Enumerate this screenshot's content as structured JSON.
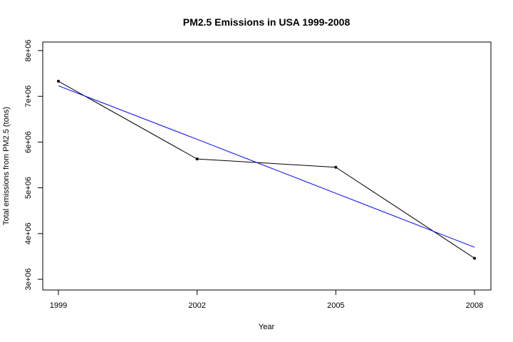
{
  "chart_data": {
    "type": "line",
    "title": "PM2.5 Emissions in USA 1999-2008",
    "xlabel": "Year",
    "ylabel": "Total emissions from PM2.5 (tons)",
    "x": [
      1999,
      2002,
      2005,
      2008
    ],
    "x_tick_labels": [
      "1999",
      "2002",
      "2005",
      "2008"
    ],
    "xlim": [
      1999,
      2008
    ],
    "ylim": [
      3000000,
      8000000
    ],
    "y_ticks": [
      3000000,
      4000000,
      5000000,
      6000000,
      7000000,
      8000000
    ],
    "y_tick_labels": [
      "3e+06",
      "4e+06",
      "5e+06",
      "6e+06",
      "7e+06",
      "8e+06"
    ],
    "grid": false,
    "legend": "none",
    "series": [
      {
        "values": [
          7330000,
          5630000,
          5450000,
          3460000
        ],
        "color": "#000000",
        "style": "line+points"
      },
      {
        "kind": "fitted-line",
        "values": [
          7230000,
          6060000,
          4880000,
          3700000
        ],
        "color": "#0000ff",
        "style": "line"
      }
    ]
  }
}
